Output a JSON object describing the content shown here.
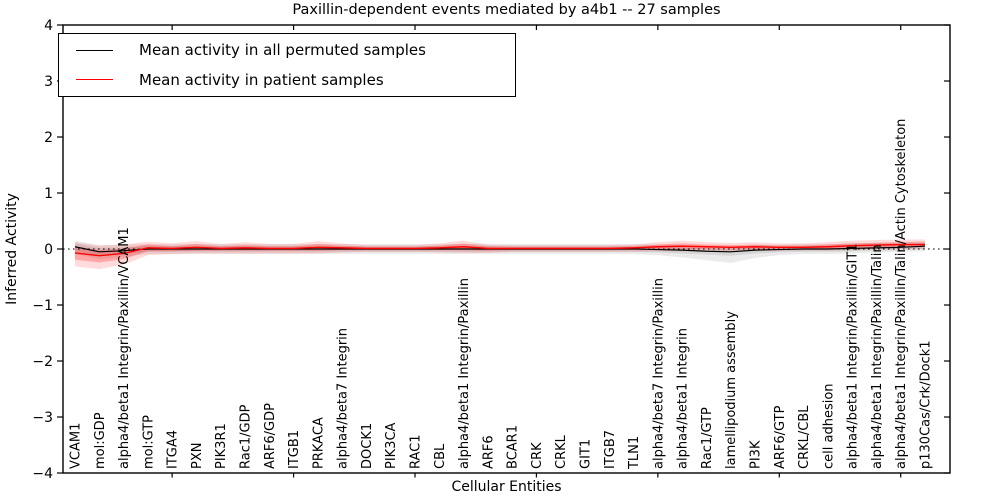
{
  "chart_data": {
    "type": "line",
    "title": "Paxillin-dependent events mediated by a4b1 -- 27 samples",
    "xlabel": "Cellular Entities",
    "ylabel": "Inferred Activity",
    "ylim": [
      -4,
      4
    ],
    "yticks": [
      -4,
      -3,
      -2,
      -1,
      0,
      1,
      2,
      3,
      4
    ],
    "grid": false,
    "zero_line": true,
    "legend_position": "upper left",
    "x_tick_label_rotation": 90,
    "categories": [
      "VCAM1",
      "mol:GDP",
      "alpha4/beta1 Integrin/Paxillin/VCAM1",
      "mol:GTP",
      "ITGA4",
      "PXN",
      "PIK3R1",
      "Rac1/GDP",
      "ARF6/GDP",
      "ITGB1",
      "PRKACA",
      "alpha4/beta7 Integrin",
      "DOCK1",
      "PIK3CA",
      "RAC1",
      "CBL",
      "alpha4/beta1 Integrin/Paxillin",
      "ARF6",
      "BCAR1",
      "CRK",
      "CRKL",
      "GIT1",
      "ITGB7",
      "TLN1",
      "alpha4/beta7 Integrin/Paxillin",
      "alpha4/beta1 Integrin",
      "Rac1/GTP",
      "lamellipodium assembly",
      "PI3K",
      "ARF6/GTP",
      "CRKL/CBL",
      "cell adhesion",
      "alpha4/beta1 Integrin/Paxillin/GIT1",
      "alpha4/beta1 Integrin/Paxillin/Talin",
      "alpha4/beta1 Integrin/Paxillin/Talin/Actin Cytoskeleton",
      "p130Cas/Crk/Dock1"
    ],
    "series": [
      {
        "name": "Mean activity in all permuted samples",
        "color": "#000000",
        "band_color": "#999999",
        "values": [
          0.04,
          -0.05,
          -0.03,
          0.0,
          0.0,
          0.0,
          0.0,
          0.0,
          0.0,
          0.0,
          0.0,
          0.0,
          0.0,
          0.0,
          0.0,
          0.0,
          0.0,
          0.0,
          0.0,
          0.0,
          0.0,
          0.0,
          0.0,
          0.0,
          -0.01,
          -0.02,
          -0.04,
          -0.05,
          -0.02,
          -0.01,
          0.0,
          0.0,
          0.01,
          0.02,
          0.03,
          0.05
        ],
        "band_inner_upper": [
          0.1,
          0.02,
          0.03,
          0.05,
          0.05,
          0.05,
          0.05,
          0.05,
          0.05,
          0.05,
          0.05,
          0.05,
          0.05,
          0.05,
          0.05,
          0.05,
          0.05,
          0.05,
          0.05,
          0.05,
          0.05,
          0.05,
          0.05,
          0.05,
          0.04,
          0.03,
          0.01,
          0.0,
          0.03,
          0.04,
          0.05,
          0.05,
          0.06,
          0.07,
          0.08,
          0.1
        ],
        "band_inner_lower": [
          -0.04,
          -0.12,
          -0.09,
          -0.05,
          -0.05,
          -0.05,
          -0.05,
          -0.05,
          -0.05,
          -0.05,
          -0.05,
          -0.05,
          -0.05,
          -0.05,
          -0.05,
          -0.05,
          -0.05,
          -0.05,
          -0.05,
          -0.05,
          -0.05,
          -0.05,
          -0.05,
          -0.05,
          -0.06,
          -0.08,
          -0.1,
          -0.12,
          -0.08,
          -0.06,
          -0.05,
          -0.05,
          -0.04,
          -0.03,
          -0.02,
          0.0
        ],
        "band_outer_upper": [
          0.15,
          0.07,
          0.08,
          0.09,
          0.09,
          0.09,
          0.09,
          0.09,
          0.09,
          0.09,
          0.09,
          0.09,
          0.09,
          0.09,
          0.09,
          0.09,
          0.09,
          0.09,
          0.09,
          0.09,
          0.09,
          0.09,
          0.09,
          0.09,
          0.08,
          0.07,
          0.05,
          0.04,
          0.07,
          0.08,
          0.09,
          0.09,
          0.1,
          0.11,
          0.12,
          0.14
        ],
        "band_outer_lower": [
          -0.09,
          -0.18,
          -0.14,
          -0.09,
          -0.09,
          -0.09,
          -0.09,
          -0.09,
          -0.09,
          -0.09,
          -0.09,
          -0.09,
          -0.09,
          -0.09,
          -0.09,
          -0.09,
          -0.09,
          -0.09,
          -0.09,
          -0.09,
          -0.09,
          -0.09,
          -0.09,
          -0.09,
          -0.11,
          -0.15,
          -0.2,
          -0.25,
          -0.16,
          -0.11,
          -0.09,
          -0.09,
          -0.08,
          -0.07,
          -0.05,
          -0.04
        ]
      },
      {
        "name": "Mean activity in patient samples",
        "color": "#ff0000",
        "band_color": "#ff0000",
        "values": [
          -0.07,
          -0.12,
          -0.08,
          0.02,
          0.01,
          0.03,
          0.01,
          0.02,
          0.01,
          0.01,
          0.03,
          0.02,
          0.01,
          0.01,
          0.01,
          0.02,
          0.04,
          0.01,
          0.01,
          0.01,
          0.01,
          0.01,
          0.01,
          0.02,
          0.04,
          0.05,
          0.04,
          0.03,
          0.04,
          0.03,
          0.03,
          0.04,
          0.06,
          0.07,
          0.08,
          0.08
        ],
        "band_inner_upper": [
          0.05,
          -0.02,
          0.01,
          0.08,
          0.05,
          0.09,
          0.05,
          0.07,
          0.05,
          0.05,
          0.09,
          0.06,
          0.04,
          0.04,
          0.04,
          0.06,
          0.1,
          0.05,
          0.04,
          0.04,
          0.04,
          0.04,
          0.04,
          0.05,
          0.08,
          0.1,
          0.08,
          0.07,
          0.08,
          0.06,
          0.06,
          0.08,
          0.1,
          0.11,
          0.12,
          0.12
        ],
        "band_inner_lower": [
          -0.19,
          -0.24,
          -0.18,
          -0.04,
          -0.04,
          -0.03,
          -0.03,
          -0.03,
          -0.03,
          -0.03,
          -0.03,
          -0.02,
          -0.02,
          -0.02,
          -0.02,
          -0.02,
          -0.02,
          -0.03,
          -0.02,
          -0.02,
          -0.02,
          -0.02,
          -0.02,
          -0.01,
          0.0,
          0.0,
          0.0,
          -0.01,
          0.0,
          0.0,
          0.0,
          0.0,
          0.02,
          0.03,
          0.04,
          0.04
        ],
        "band_outer_upper": [
          0.12,
          0.06,
          0.08,
          0.13,
          0.1,
          0.14,
          0.09,
          0.12,
          0.09,
          0.09,
          0.14,
          0.1,
          0.07,
          0.07,
          0.07,
          0.1,
          0.15,
          0.08,
          0.07,
          0.07,
          0.07,
          0.07,
          0.07,
          0.08,
          0.12,
          0.15,
          0.12,
          0.11,
          0.12,
          0.1,
          0.1,
          0.12,
          0.15,
          0.16,
          0.17,
          0.17
        ],
        "band_outer_lower": [
          -0.31,
          -0.36,
          -0.28,
          -0.11,
          -0.09,
          -0.08,
          -0.08,
          -0.08,
          -0.08,
          -0.08,
          -0.08,
          -0.06,
          -0.05,
          -0.05,
          -0.05,
          -0.06,
          -0.07,
          -0.07,
          -0.05,
          -0.05,
          -0.05,
          -0.05,
          -0.05,
          -0.05,
          -0.04,
          -0.04,
          -0.04,
          -0.05,
          -0.04,
          -0.03,
          -0.03,
          -0.03,
          -0.02,
          -0.01,
          0.0,
          0.0
        ]
      }
    ]
  }
}
